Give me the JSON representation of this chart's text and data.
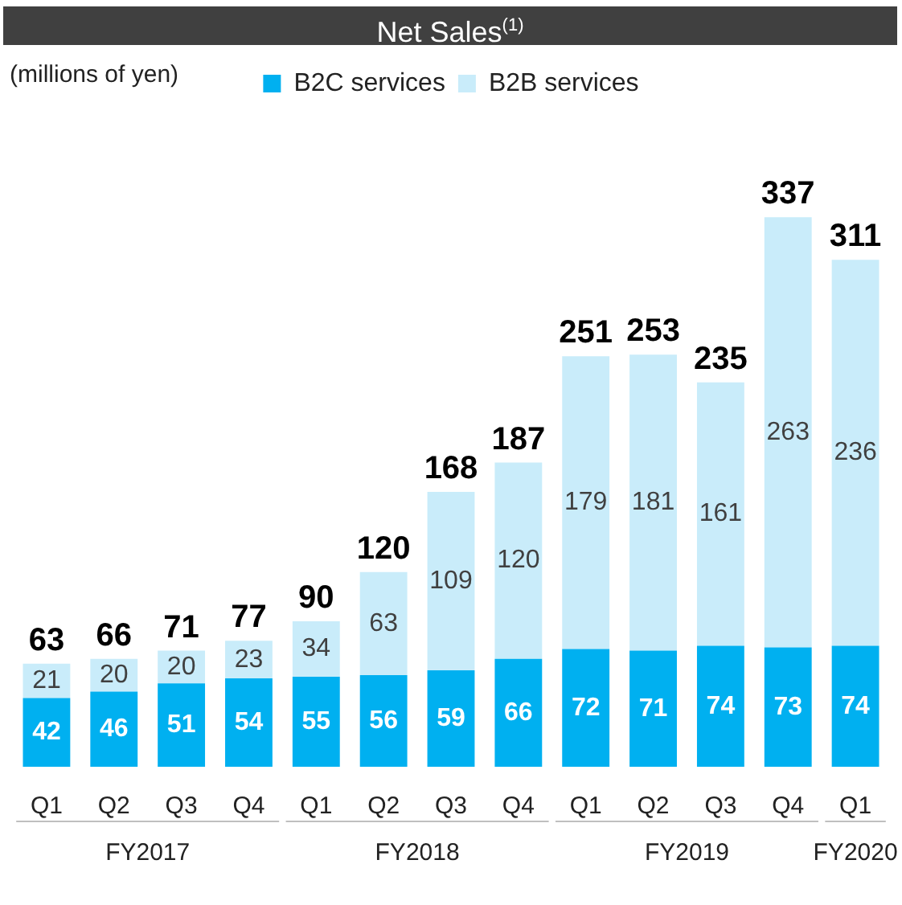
{
  "chart_data": {
    "type": "bar",
    "title": "Net Sales$^{(1)}$",
    "categories": [
      "Q1",
      "Q2",
      "Q3",
      "Q4",
      "Q1",
      "Q2",
      "Q3",
      "Q4",
      "Q1",
      "Q2",
      "Q3",
      "Q4",
      "Q1"
    ],
    "annotations": [
      "(millions of yen)",
      "FY2017",
      "FY2018",
      "FY2019",
      "FY2020"
    ],
    "stacked": true,
    "data_labels": true,
    "legend": "top",
    "grid": false,
    "series": [
      {
        "name": "B2C services",
        "color": "#00b0f0",
        "values": [
          42,
          46,
          51,
          54,
          55,
          56,
          59,
          66,
          72,
          71,
          74,
          73,
          74
        ]
      },
      {
        "name": "B2B services",
        "color": "#c9ecfa",
        "values": [
          21,
          20,
          20,
          23,
          34,
          63,
          109,
          120,
          179,
          181,
          161,
          263,
          236
        ]
      }
    ],
    "totals": [
      "63",
      "66",
      "71",
      "77",
      "90",
      "120",
      "168",
      "187",
      "251",
      "253",
      "235",
      "337",
      "311"
    ]
  }
}
